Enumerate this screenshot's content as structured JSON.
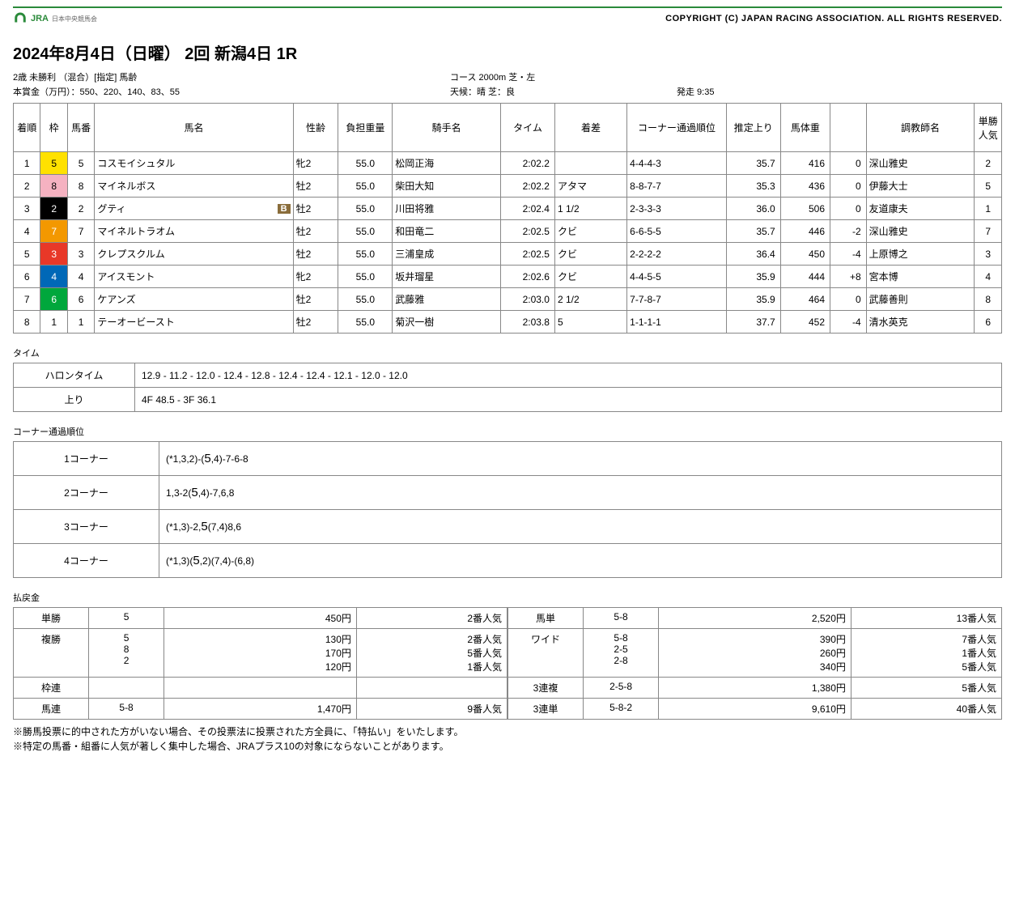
{
  "header": {
    "logo_text": "JRA",
    "logo_sub": "日本中央競馬会",
    "copyright": "COPYRIGHT (C) JAPAN RACING ASSOCIATION. ALL RIGHTS RESERVED."
  },
  "title": "2024年8月4日（日曜） 2回 新潟4日 1R",
  "meta": {
    "race_class": "2歳 未勝利 （混合）[指定] 馬齢",
    "course": "コース 2000m 芝・左",
    "prize": "本賞金（万円）：550、220、140、83、55",
    "weather": "天候：晴 芝：良",
    "start": "発走 9:35"
  },
  "columns": [
    "着順",
    "枠",
    "馬番",
    "馬名",
    "性齢",
    "負担重量",
    "騎手名",
    "タイム",
    "着差",
    "コーナー通過順位",
    "推定上り",
    "馬体重",
    "",
    "調教師名",
    "単勝人気"
  ],
  "waku_colors": {
    "1": "waku-1",
    "2": "waku-2",
    "3": "waku-3",
    "4": "waku-4",
    "5": "waku-5",
    "6": "waku-6",
    "7": "waku-7",
    "8": "waku-8"
  },
  "rows": [
    {
      "rank": "1",
      "waku": "5",
      "num": "5",
      "name": "コスモイシュタル",
      "badge": "",
      "sex": "牝2",
      "wt": "55.0",
      "jockey": "松岡正海",
      "time": "2:02.2",
      "diff": "",
      "corner": "4-4-4-3",
      "last": "35.7",
      "bw": "416",
      "bwd": "0",
      "trainer": "深山雅史",
      "pop": "2"
    },
    {
      "rank": "2",
      "waku": "8",
      "num": "8",
      "name": "マイネルボス",
      "badge": "",
      "sex": "牡2",
      "wt": "55.0",
      "jockey": "柴田大知",
      "time": "2:02.2",
      "diff": "アタマ",
      "corner": "8-8-7-7",
      "last": "35.3",
      "bw": "436",
      "bwd": "0",
      "trainer": "伊藤大士",
      "pop": "5"
    },
    {
      "rank": "3",
      "waku": "2",
      "num": "2",
      "name": "グティ",
      "badge": "B",
      "sex": "牡2",
      "wt": "55.0",
      "jockey": "川田将雅",
      "time": "2:02.4",
      "diff": "1 1/2",
      "corner": "2-3-3-3",
      "last": "36.0",
      "bw": "506",
      "bwd": "0",
      "trainer": "友道康夫",
      "pop": "1"
    },
    {
      "rank": "4",
      "waku": "7",
      "num": "7",
      "name": "マイネルトラオム",
      "badge": "",
      "sex": "牡2",
      "wt": "55.0",
      "jockey": "和田竜二",
      "time": "2:02.5",
      "diff": "クビ",
      "corner": "6-6-5-5",
      "last": "35.7",
      "bw": "446",
      "bwd": "-2",
      "trainer": "深山雅史",
      "pop": "7"
    },
    {
      "rank": "5",
      "waku": "3",
      "num": "3",
      "name": "クレプスクルム",
      "badge": "",
      "sex": "牡2",
      "wt": "55.0",
      "jockey": "三浦皇成",
      "time": "2:02.5",
      "diff": "クビ",
      "corner": "2-2-2-2",
      "last": "36.4",
      "bw": "450",
      "bwd": "-4",
      "trainer": "上原博之",
      "pop": "3"
    },
    {
      "rank": "6",
      "waku": "4",
      "num": "4",
      "name": "アイスモント",
      "badge": "",
      "sex": "牝2",
      "wt": "55.0",
      "jockey": "坂井瑠星",
      "time": "2:02.6",
      "diff": "クビ",
      "corner": "4-4-5-5",
      "last": "35.9",
      "bw": "444",
      "bwd": "+8",
      "trainer": "宮本博",
      "pop": "4"
    },
    {
      "rank": "7",
      "waku": "6",
      "num": "6",
      "name": "ケアンズ",
      "badge": "",
      "sex": "牡2",
      "wt": "55.0",
      "jockey": "武藤雅",
      "time": "2:03.0",
      "diff": "2 1/2",
      "corner": "7-7-8-7",
      "last": "35.9",
      "bw": "464",
      "bwd": "0",
      "trainer": "武藤善則",
      "pop": "8"
    },
    {
      "rank": "8",
      "waku": "1",
      "num": "1",
      "name": "テーオービースト",
      "badge": "",
      "sex": "牡2",
      "wt": "55.0",
      "jockey": "菊沢一樹",
      "time": "2:03.8",
      "diff": "5",
      "corner": "1-1-1-1",
      "last": "37.7",
      "bw": "452",
      "bwd": "-4",
      "trainer": "清水英克",
      "pop": "6"
    }
  ],
  "time_section": {
    "label": "タイム",
    "halon_label": "ハロンタイム",
    "halon": "12.9 - 11.2 - 12.0 - 12.4 - 12.8 - 12.4 - 12.4 - 12.1 - 12.0 - 12.0",
    "agari_label": "上り",
    "agari": "4F 48.5 - 3F 36.1"
  },
  "corner_section": {
    "label": "コーナー通過順位",
    "rows": [
      {
        "label": "1コーナー",
        "val": "(*1,3,2)-(<span class=\"big\">5</span>,4)-7-6-8"
      },
      {
        "label": "2コーナー",
        "val": "1,3-2(<span class=\"big\">5</span>,4)-7,6,8"
      },
      {
        "label": "3コーナー",
        "val": "(*1,3)-2,<span class=\"big\">5</span>(7,4)8,6"
      },
      {
        "label": "4コーナー",
        "val": "(*1,3)(<span class=\"big\">5</span>,2)(7,4)-(6,8)"
      }
    ]
  },
  "pay_section": {
    "label": "払戻金",
    "left": [
      {
        "type": "単勝",
        "num": "5",
        "amt": "450円",
        "pop": "2番人気"
      },
      {
        "type": "複勝",
        "num": "5<br>8<br>2",
        "amt": "130円<br>170円<br>120円",
        "pop": "2番人気<br>5番人気<br>1番人気"
      },
      {
        "type": "枠連",
        "num": "",
        "amt": "",
        "pop": ""
      },
      {
        "type": "馬連",
        "num": "5-8",
        "amt": "1,470円",
        "pop": "9番人気"
      }
    ],
    "right": [
      {
        "type": "馬単",
        "num": "5-8",
        "amt": "2,520円",
        "pop": "13番人気"
      },
      {
        "type": "ワイド",
        "num": "5-8<br>2-5<br>2-8",
        "amt": "390円<br>260円<br>340円",
        "pop": "7番人気<br>1番人気<br>5番人気"
      },
      {
        "type": "3連複",
        "num": "2-5-8",
        "amt": "1,380円",
        "pop": "5番人気"
      },
      {
        "type": "3連単",
        "num": "5-8-2",
        "amt": "9,610円",
        "pop": "40番人気"
      }
    ]
  },
  "notes": [
    "※勝馬投票に的中された方がいない場合、その投票法に投票された方全員に、「特払い」をいたします。",
    "※特定の馬番・組番に人気が著しく集中した場合、JRAプラス10の対象にならないことがあります。"
  ],
  "col_widths": {
    "rank": 30,
    "waku": 30,
    "num": 30,
    "name": 220,
    "sex": 50,
    "wt": 60,
    "jockey": 120,
    "time": 60,
    "diff": 80,
    "corner": 110,
    "last": 60,
    "bw": 55,
    "bwd": 40,
    "trainer": 120,
    "pop": 30
  }
}
